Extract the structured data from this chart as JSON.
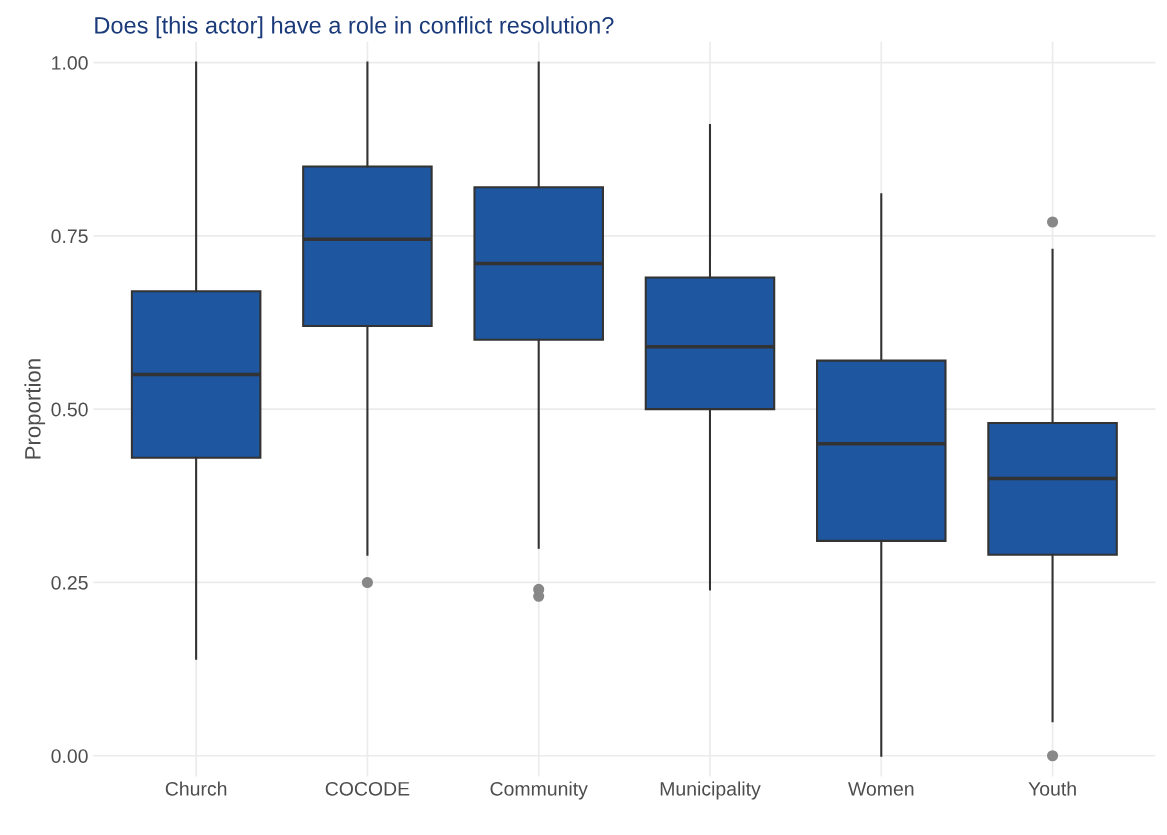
{
  "chart_data": {
    "type": "box",
    "title": "Does [this actor] have a role in conflict resolution?",
    "ylabel": "Proportion",
    "categories": [
      "Church",
      "COCODE",
      "Community",
      "Municipality",
      "Women",
      "Youth"
    ],
    "series": [
      {
        "color": "#1f56a0",
        "boxes": [
          {
            "low": 0.14,
            "q1": 0.43,
            "median": 0.55,
            "q3": 0.67,
            "high": 1.0
          },
          {
            "low": 0.29,
            "q1": 0.62,
            "median": 0.745,
            "q3": 0.85,
            "high": 1.0,
            "outliers": [
              0.25
            ]
          },
          {
            "low": 0.3,
            "q1": 0.6,
            "median": 0.71,
            "q3": 0.82,
            "high": 1.0,
            "outliers": [
              0.24,
              0.23
            ]
          },
          {
            "low": 0.24,
            "q1": 0.5,
            "median": 0.59,
            "q3": 0.69,
            "high": 0.91
          },
          {
            "low": 0.0,
            "q1": 0.31,
            "median": 0.45,
            "q3": 0.57,
            "high": 0.81
          },
          {
            "low": 0.05,
            "q1": 0.29,
            "median": 0.4,
            "q3": 0.48,
            "high": 0.73,
            "outliers": [
              0.77,
              0.0
            ]
          }
        ]
      }
    ],
    "ylim": [
      -0.03,
      1.03
    ],
    "yticks": [
      {
        "value": 0,
        "label": "0.00"
      },
      {
        "value": 0.25,
        "label": "0.25"
      },
      {
        "value": 0.5,
        "label": "0.50"
      },
      {
        "value": 0.75,
        "label": "0.75"
      },
      {
        "value": 1,
        "label": "1.00"
      }
    ],
    "grid": true
  }
}
